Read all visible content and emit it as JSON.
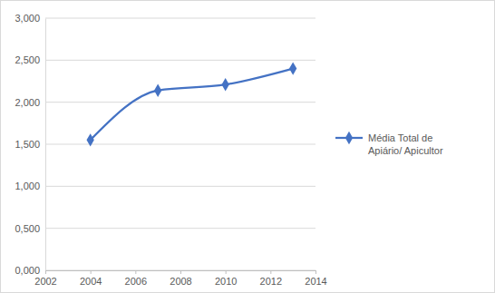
{
  "chart_data": {
    "type": "line",
    "x": [
      2004,
      2007,
      2010,
      2013
    ],
    "series": [
      {
        "name": "Média Total de Apiário/ Apicultor",
        "color": "#4472c4",
        "marker": "diamond",
        "line_style": "solid",
        "values": [
          1.55,
          2.14,
          2.21,
          2.4
        ]
      }
    ],
    "xlim": [
      2002,
      2014
    ],
    "xticks": [
      2002,
      2004,
      2006,
      2008,
      2010,
      2012,
      2014
    ],
    "ylim": [
      0,
      3
    ],
    "yticks": [
      {
        "value": 0,
        "label": "0,000"
      },
      {
        "value": 0.5,
        "label": "0,500"
      },
      {
        "value": 1,
        "label": "1,000"
      },
      {
        "value": 1.5,
        "label": "1,500"
      },
      {
        "value": 2,
        "label": "2,000"
      },
      {
        "value": 2.5,
        "label": "2,500"
      },
      {
        "value": 3,
        "label": "3,000"
      }
    ],
    "grid": true,
    "legend": "right"
  }
}
